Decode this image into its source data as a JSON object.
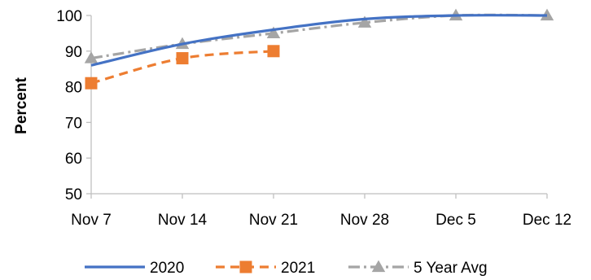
{
  "chart_data": {
    "type": "line",
    "categories": [
      "Nov 7",
      "Nov 14",
      "Nov 21",
      "Nov 28",
      "Dec 5",
      "Dec 12"
    ],
    "ylabel": "Percent",
    "ylim": [
      50,
      100
    ],
    "yticks": [
      50,
      60,
      70,
      80,
      90,
      100
    ],
    "grid": false,
    "legend": "bottom",
    "series": [
      {
        "name": "2020",
        "color": "#4472C4",
        "style": "solid",
        "marker": "none",
        "values": [
          86,
          92,
          96,
          99,
          100,
          100
        ]
      },
      {
        "name": "2021",
        "color": "#ED7D31",
        "style": "dashed",
        "marker": "square",
        "values": [
          81,
          88,
          90,
          null,
          null,
          null
        ]
      },
      {
        "name": "5 Year Avg",
        "color": "#A5A5A5",
        "style": "dash-dot",
        "marker": "triangle",
        "values": [
          88,
          92,
          95,
          98,
          100,
          100
        ]
      }
    ]
  }
}
